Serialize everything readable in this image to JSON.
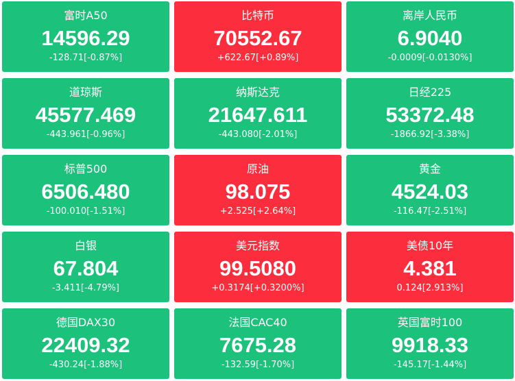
{
  "tiles": [
    {
      "name": "富时A50",
      "price": "14596.29",
      "change": "-128.71[-0.87%]",
      "color": "#1cc17b"
    },
    {
      "name": "比特币",
      "price": "70552.67",
      "change": "+622.67[+0.89%]",
      "color": "#fc2e3d"
    },
    {
      "name": "离岸人民币",
      "price": "6.9040",
      "change": "-0.0009[-0.0130%]",
      "color": "#1cc17b"
    },
    {
      "name": "道琼斯",
      "price": "45577.469",
      "change": "-443.961[-0.96%]",
      "color": "#1cc17b"
    },
    {
      "name": "纳斯达克",
      "price": "21647.611",
      "change": "-443.080[-2.01%]",
      "color": "#1cc17b"
    },
    {
      "name": "日经225",
      "price": "53372.48",
      "change": "-1866.92[-3.38%]",
      "color": "#1cc17b"
    },
    {
      "name": "标普500",
      "price": "6506.480",
      "change": "-100.010[-1.51%]",
      "color": "#1cc17b"
    },
    {
      "name": "原油",
      "price": "98.075",
      "change": "+2.525[+2.64%]",
      "color": "#fc2e3d"
    },
    {
      "name": "黄金",
      "price": "4524.03",
      "change": "-116.47[-2.51%]",
      "color": "#1cc17b"
    },
    {
      "name": "白银",
      "price": "67.804",
      "change": "-3.411[-4.79%]",
      "color": "#1cc17b"
    },
    {
      "name": "美元指数",
      "price": "99.5080",
      "change": "+0.3174[+0.3200%]",
      "color": "#fc2e3d"
    },
    {
      "name": "美债10年",
      "price": "4.381",
      "change": "0.124[2.913%]",
      "color": "#fc2e3d"
    },
    {
      "name": "德国DAX30",
      "price": "22409.32",
      "change": "-430.24[-1.88%]",
      "color": "#1cc17b"
    },
    {
      "name": "法国CAC40",
      "price": "7675.28",
      "change": "-132.59[-1.70%]",
      "color": "#1cc17b"
    },
    {
      "name": "英国富时100",
      "price": "9918.33",
      "change": "-145.17[-1.44%]",
      "color": "#1cc17b"
    }
  ]
}
